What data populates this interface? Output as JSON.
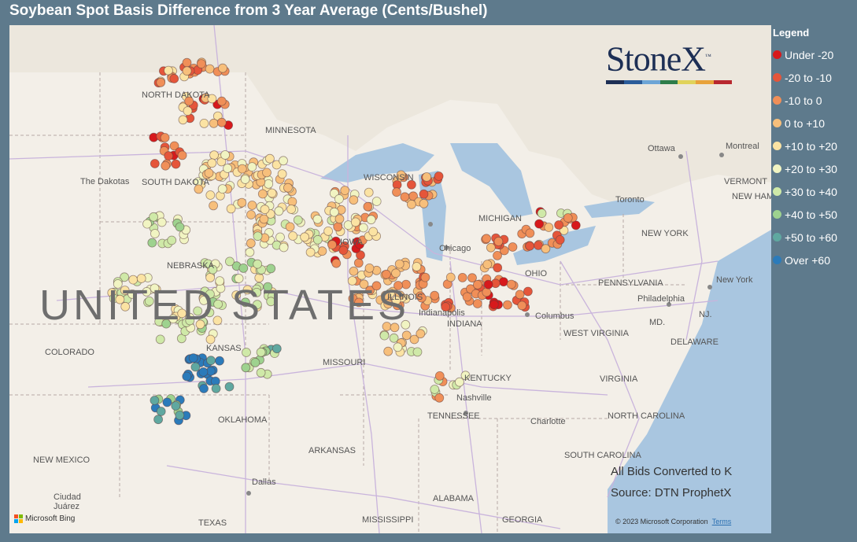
{
  "title": "Soybean Spot Basis Difference from 3 Year Average (Cents/Bushel)",
  "legend": {
    "title": "Legend",
    "items": [
      {
        "label": "Under -20",
        "color": "#d7191c"
      },
      {
        "label": "-20 to -10",
        "color": "#e5553a"
      },
      {
        "label": "-10 to 0",
        "color": "#f08f58"
      },
      {
        "label": "0 to +10",
        "color": "#f7bf7b"
      },
      {
        "label": "+10 to +20",
        "color": "#fbe3a3"
      },
      {
        "label": "+20 to +30",
        "color": "#f1f4c2"
      },
      {
        "label": "+30 to +40",
        "color": "#cfe9a8"
      },
      {
        "label": "+40 to +50",
        "color": "#9ed28f"
      },
      {
        "label": "+50 to +60",
        "color": "#5fa8a0"
      },
      {
        "label": "Over +60",
        "color": "#2b7bba"
      }
    ]
  },
  "logo": {
    "text": "StoneX",
    "tm": "™",
    "bar_colors": [
      "#1d2f55",
      "#2b5c9a",
      "#6da5d6",
      "#2e7d4a",
      "#e0d35a",
      "#e8a23a",
      "#b8282e"
    ]
  },
  "notes": {
    "line1": "All Bids Converted to K",
    "line2": "Source: DTN ProphetX"
  },
  "attribution": {
    "bing": "Microsoft Bing",
    "copyright": "© 2023 Microsoft Corporation",
    "terms": "Terms"
  },
  "map_labels": {
    "country": "UNITED STATES",
    "north_dakota": "NORTH DAKOTA",
    "south_dakota": "SOUTH DAKOTA",
    "the_dakotas": "The Dakotas",
    "minnesota": "MINNESOTA",
    "wisconsin": "WISCONSIN",
    "michigan": "MICHIGAN",
    "nebraska": "NEBRASKA",
    "iowa": "IOWA",
    "colorado": "COLORADO",
    "kansas": "KANSAS",
    "missouri": "MISSOURI",
    "illinois": "ILLINOIS",
    "indiana": "INDIANA",
    "ohio": "OHIO",
    "oklahoma": "OKLAHOMA",
    "arkansas": "ARKANSAS",
    "tennessee": "TENNESSEE",
    "kentucky": "KENTUCKY",
    "west_virginia": "WEST VIRGINIA",
    "virginia": "VIRGINIA",
    "north_carolina": "NORTH CAROLINA",
    "south_carolina": "SOUTH CAROLINA",
    "pennsylvania": "PENNSYLVANIA",
    "new_york": "NEW YORK",
    "vermont": "VERMONT",
    "new_hampshire": "NEW HAMPSHIRE",
    "nj": "NJ.",
    "md": "MD.",
    "delaware": "DELAWARE",
    "new_mexico": "NEW MEXICO",
    "texas": "TEXAS",
    "alabama": "ALABAMA",
    "mississippi": "MISSISSIPPI",
    "georgia": "GEORGIA",
    "ottawa": "Ottawa",
    "montreal": "Montreal",
    "toronto": "Toronto",
    "chicago": "Chicago",
    "columbus": "Columbus",
    "nashville": "Nashville",
    "charlotte": "Charlotte",
    "dallas": "Dallas",
    "ciudad_juarez": "Ciudad Juárez",
    "philadelphia": "Philadelphia",
    "new_york_city": "New York",
    "indianapolis": "Indianapolis"
  }
}
